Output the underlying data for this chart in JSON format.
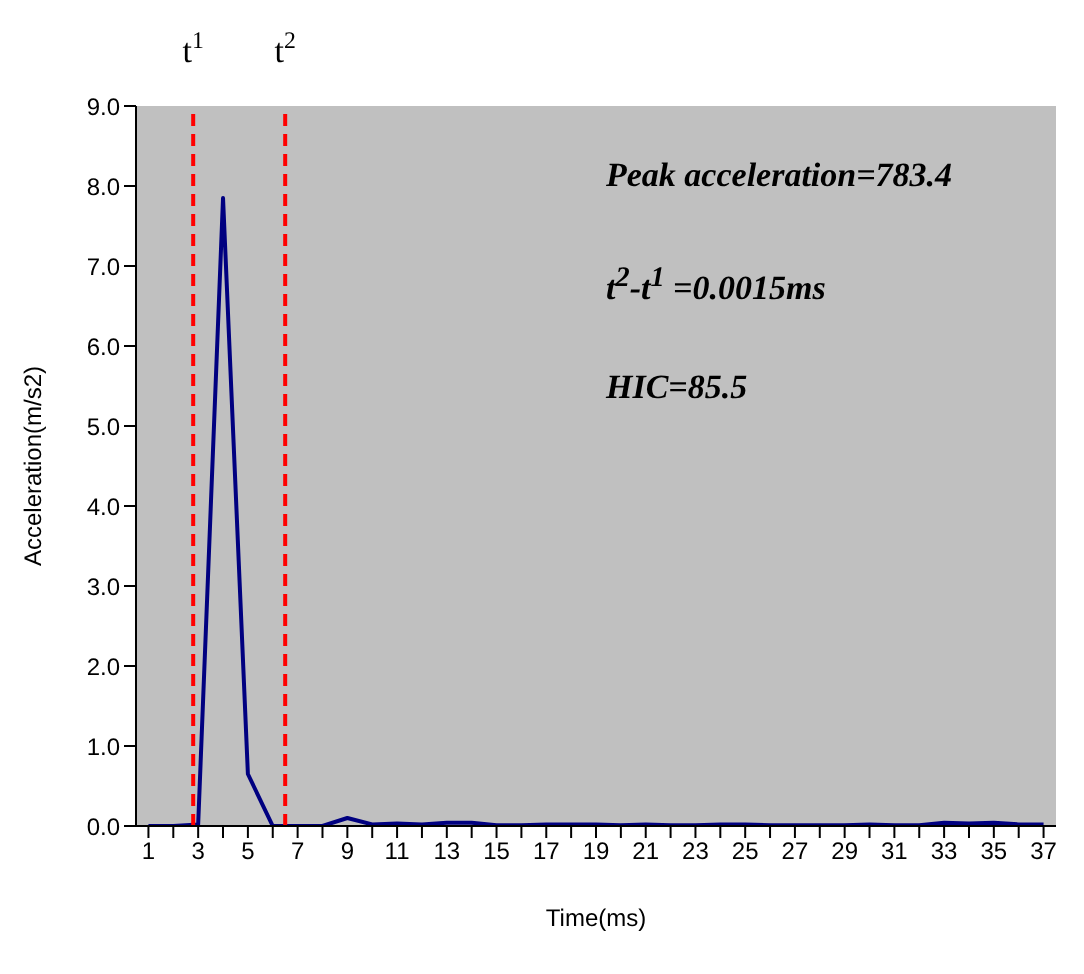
{
  "chart_data": {
    "type": "line",
    "xlabel": "Time(ms)",
    "ylabel": "Acceleration(m/s2)",
    "x": [
      1,
      2,
      3,
      4,
      5,
      6,
      7,
      8,
      9,
      10,
      11,
      12,
      13,
      14,
      15,
      16,
      17,
      18,
      19,
      20,
      21,
      22,
      23,
      24,
      25,
      26,
      27,
      28,
      29,
      30,
      31,
      32,
      33,
      34,
      35,
      36,
      37
    ],
    "series": [
      {
        "color": "#000080",
        "values": [
          0,
          0,
          0.02,
          7.85,
          0.65,
          0,
          0,
          0,
          0.1,
          0.02,
          0.03,
          0.02,
          0.04,
          0.04,
          0.01,
          0.01,
          0.02,
          0.02,
          0.02,
          0.01,
          0.02,
          0.01,
          0.01,
          0.02,
          0.02,
          0.01,
          0.01,
          0.01,
          0.01,
          0.02,
          0.01,
          0.01,
          0.04,
          0.03,
          0.04,
          0.02,
          0.02
        ]
      }
    ],
    "xlim": [
      0.5,
      37.5
    ],
    "xticks": [
      1,
      {
        "value": 2,
        "label": null
      },
      3,
      {
        "value": 4,
        "label": null
      },
      5,
      {
        "value": 6,
        "label": null
      },
      7,
      {
        "value": 8,
        "label": null
      },
      9,
      {
        "value": 10,
        "label": null
      },
      11,
      {
        "value": 12,
        "label": null
      },
      13,
      {
        "value": 14,
        "label": null
      },
      15,
      {
        "value": 16,
        "label": null
      },
      17,
      {
        "value": 18,
        "label": null
      },
      19,
      {
        "value": 20,
        "label": null
      },
      21,
      {
        "value": 22,
        "label": null
      },
      23,
      {
        "value": 24,
        "label": null
      },
      25,
      {
        "value": 26,
        "label": null
      },
      27,
      {
        "value": 28,
        "label": null
      },
      29,
      {
        "value": 30,
        "label": null
      },
      31,
      {
        "value": 32,
        "label": null
      },
      33,
      {
        "value": 34,
        "label": null
      },
      35,
      {
        "value": 36,
        "label": null
      },
      37
    ],
    "ylim": [
      0,
      9
    ],
    "yticks": [
      {
        "value": 0,
        "label": "0.0"
      },
      {
        "value": 1,
        "label": "1.0"
      },
      {
        "value": 2,
        "label": "2.0"
      },
      {
        "value": 3,
        "label": "3.0"
      },
      {
        "value": 4,
        "label": "4.0"
      },
      {
        "value": 5,
        "label": "5.0"
      },
      {
        "value": 6,
        "label": "6.0"
      },
      {
        "value": 7,
        "label": "7.0"
      },
      {
        "value": 8,
        "label": "8.0"
      },
      {
        "value": 9,
        "label": "9.0"
      }
    ],
    "ref_lines": [
      {
        "axis": "x",
        "value": 2.8,
        "label": "t$^{1}$",
        "color": "#ff0000",
        "line_style": "dashed"
      },
      {
        "axis": "x",
        "value": 6.5,
        "label": "t$^{2}$",
        "color": "#ff0000",
        "line_style": "dashed"
      }
    ],
    "annotations": [
      "Peak acceleration=783.4",
      "t$^{2}$-t$^{1}$ =0.0015ms",
      "HIC=85.5"
    ],
    "marker": "none",
    "line_style": "solid",
    "grid": false
  }
}
